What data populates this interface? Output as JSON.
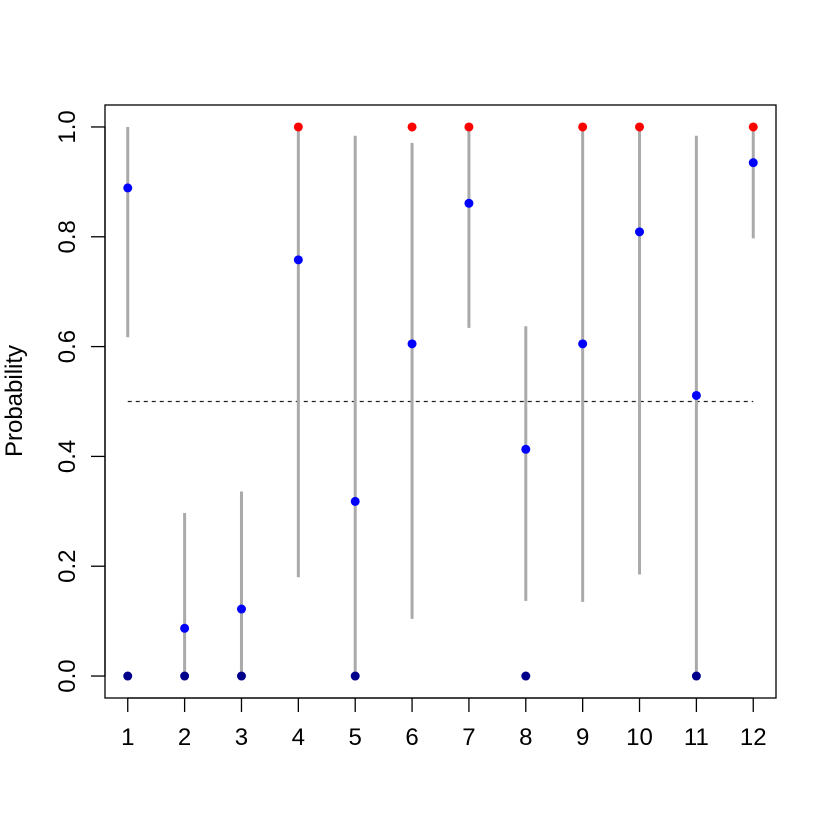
{
  "chart_data": {
    "type": "scatter",
    "title": "",
    "xlabel": "",
    "ylabel": "Probability",
    "xlim": [
      0.6,
      12.4
    ],
    "ylim": [
      -0.04,
      1.04
    ],
    "x_ticks": [
      "1",
      "2",
      "3",
      "4",
      "5",
      "6",
      "7",
      "8",
      "9",
      "10",
      "11",
      "12"
    ],
    "y_ticks": [
      "0.0",
      "0.2",
      "0.4",
      "0.6",
      "0.8",
      "1.0"
    ],
    "y_tick_values": [
      0.0,
      0.2,
      0.4,
      0.6,
      0.8,
      1.0
    ],
    "reference_line": {
      "y": 0.5,
      "style": "dashed",
      "color": "#222222"
    },
    "interval_color": "#aaaaaa",
    "grid": false,
    "series": [
      {
        "kind": "estimate",
        "color": "#0000ff",
        "x": [
          1,
          2,
          3,
          4,
          5,
          6,
          7,
          8,
          9,
          10,
          11,
          12
        ],
        "y": [
          0.889,
          0.087,
          0.122,
          0.758,
          0.318,
          0.605,
          0.861,
          0.413,
          0.605,
          0.809,
          0.511,
          0.935
        ]
      },
      {
        "kind": "interval",
        "x": [
          1,
          2,
          3,
          4,
          5,
          6,
          7,
          8,
          9,
          10,
          11,
          12
        ],
        "low": [
          0.617,
          0.0,
          0.0,
          0.18,
          0.0,
          0.104,
          0.634,
          0.137,
          0.135,
          0.185,
          0.0,
          0.797
        ],
        "high": [
          1.0,
          0.297,
          0.336,
          1.0,
          0.984,
          0.971,
          1.0,
          0.637,
          1.0,
          1.0,
          0.984,
          1.0
        ]
      },
      {
        "kind": "observed-1",
        "color": "#ff0000",
        "x": [
          4,
          6,
          7,
          9,
          10,
          12
        ],
        "y": [
          1,
          1,
          1,
          1,
          1,
          1
        ]
      },
      {
        "kind": "observed-0",
        "color": "#00008b",
        "x": [
          1,
          2,
          3,
          5,
          8,
          11
        ],
        "y": [
          0,
          0,
          0,
          0,
          0,
          0
        ]
      }
    ]
  }
}
